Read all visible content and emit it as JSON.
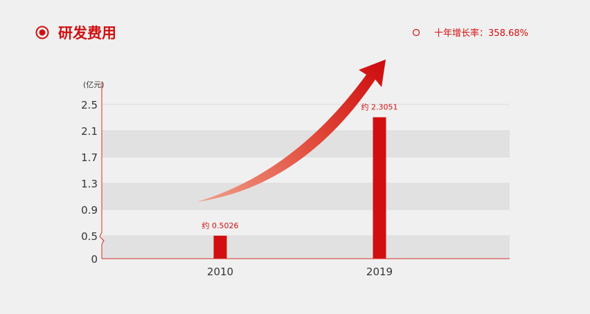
{
  "header": {
    "title": "研发费用",
    "growth_label": "十年增长率",
    "growth_value": "358.68%"
  },
  "colors": {
    "accent": "#d10f10",
    "axis": "#d3302a",
    "band": "#e2e1e1",
    "background": "#f1f0f0",
    "arrow_start": "#f1a18c",
    "arrow_end": "#cc0a0c",
    "text": "#333333"
  },
  "chart_data": {
    "type": "bar",
    "unit_label": "(亿元)",
    "categories": [
      "2010",
      "2019"
    ],
    "values": [
      0.5026,
      2.3051
    ],
    "data_labels": [
      "约 0.5026",
      "约 2.3051"
    ],
    "y_ticks": [
      0,
      0.5,
      0.9,
      1.3,
      1.7,
      2.1,
      2.5
    ],
    "y_tick_labels": [
      "0",
      "0.5",
      "0.9",
      "1.3",
      "1.7",
      "2.1",
      "2.5"
    ],
    "ylim": [
      0,
      2.5
    ],
    "grid": "alternating-bands",
    "legend": "none",
    "annotation": "upward-trend-arrow"
  }
}
